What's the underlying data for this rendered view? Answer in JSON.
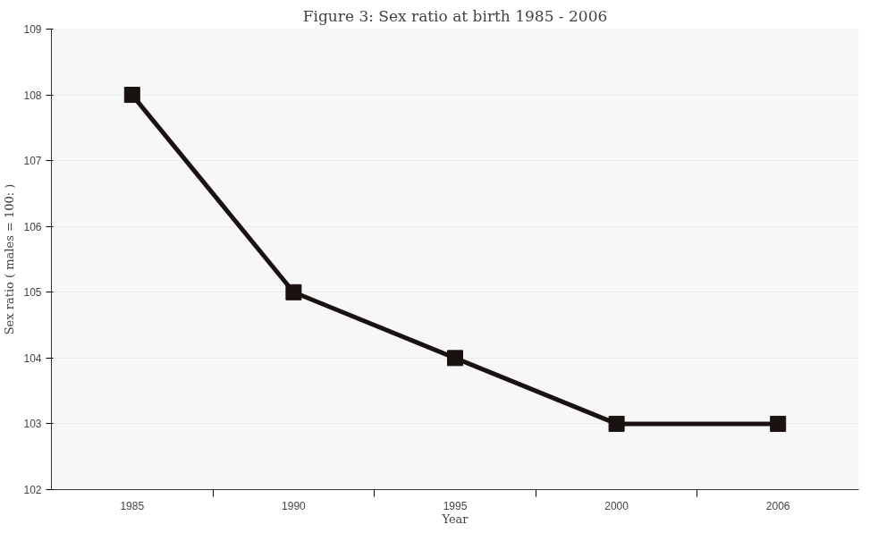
{
  "chart_data": {
    "type": "line",
    "title": "Figure 3: Sex ratio at birth 1985 - 2006",
    "xlabel": "Year",
    "ylabel": "Sex ratio ( males = 100: )",
    "categories": [
      "1985",
      "1990",
      "1995",
      "2000",
      "2006"
    ],
    "series": [
      {
        "color": "#1a1210",
        "values": [
          108,
          105,
          104,
          103,
          103
        ]
      }
    ],
    "ylim": [
      102,
      109
    ],
    "yticks": [
      102,
      103,
      104,
      105,
      106,
      107,
      108,
      109
    ],
    "grid": "y",
    "marker": "square",
    "line_style": "solid"
  }
}
